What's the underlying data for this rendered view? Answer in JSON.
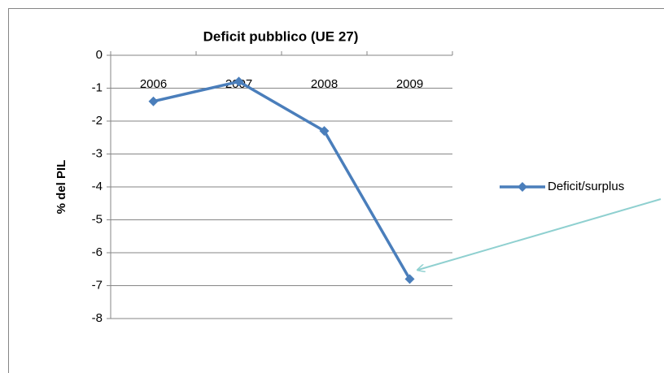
{
  "chart_data": {
    "type": "line",
    "title": "Deficit pubblico (UE 27)",
    "y_label": "% del PIL",
    "categories": [
      "2006",
      "2007",
      "2008",
      "2009"
    ],
    "series": [
      {
        "name": "Deficit/surplus",
        "color": "#4a7ebb",
        "values": [
          -1.4,
          -0.8,
          -2.3,
          -6.8
        ]
      }
    ],
    "ylim": [
      -8,
      0
    ],
    "yticks": [
      0,
      -1,
      -2,
      -3,
      -4,
      -5,
      -6,
      -7,
      -8
    ],
    "grid": true,
    "legend": "right"
  }
}
